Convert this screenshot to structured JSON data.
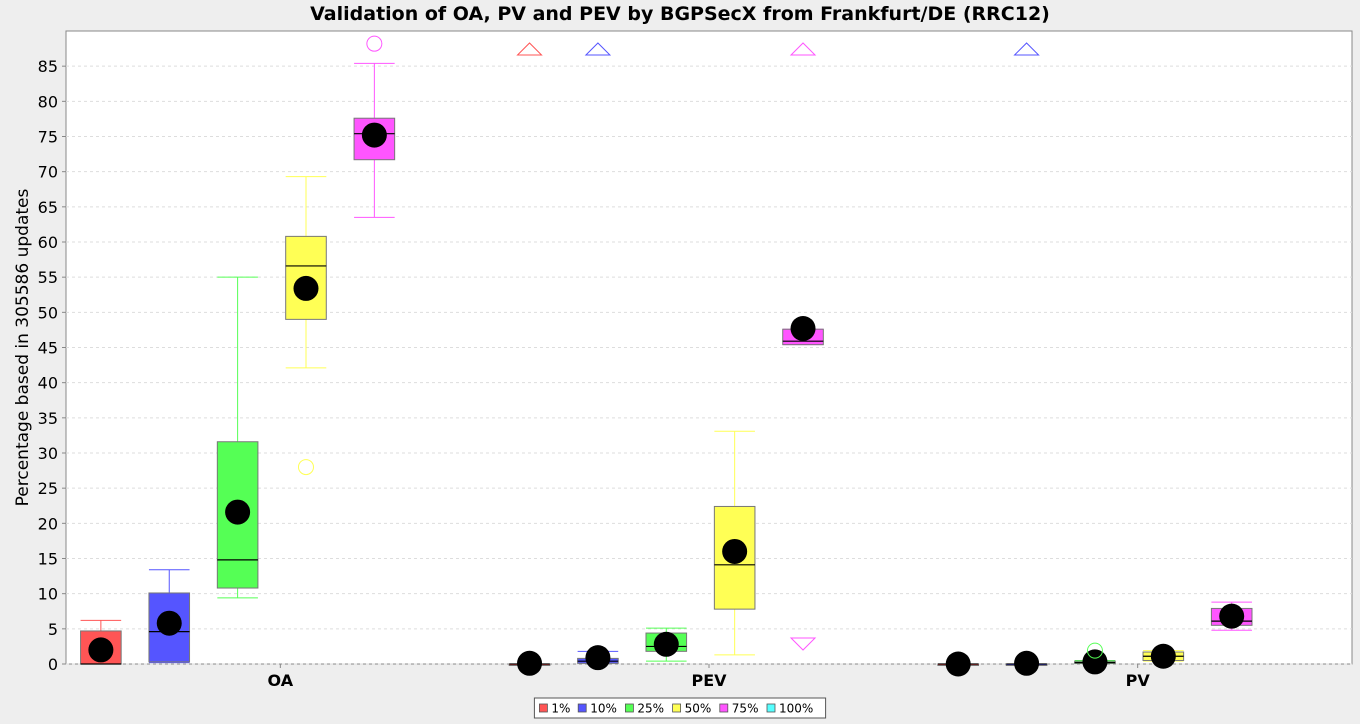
{
  "chart_data": {
    "type": "box",
    "title": "Validation of OA, PV and PEV by BGPSecX from Frankfurt/DE (RRC12)",
    "xlabel": "",
    "ylabel": "Percentage based in 305586 updates",
    "ylim": [
      0,
      90
    ],
    "yticks": [
      0,
      5,
      10,
      15,
      20,
      25,
      30,
      35,
      40,
      45,
      50,
      55,
      60,
      65,
      70,
      75,
      80,
      85
    ],
    "grid": true,
    "legend_position": "bottom",
    "categories": [
      "OA",
      "PEV",
      "PV"
    ],
    "series": [
      {
        "name": "1%",
        "color": "#ff5555",
        "boxes": [
          {
            "min": 0,
            "q1": 0,
            "median": 0,
            "q3": 4.7,
            "max": 6.2,
            "mean": 2.0,
            "outliers": [],
            "far_out_up": false,
            "far_out_down": false
          },
          {
            "min": 0,
            "q1": 0,
            "median": 0,
            "q3": 0,
            "max": 0,
            "mean": 0.1,
            "outliers": [],
            "far_out_up": true,
            "far_out_down": false
          },
          {
            "min": 0,
            "q1": 0,
            "median": 0,
            "q3": 0,
            "max": 0,
            "mean": 0,
            "outliers": [],
            "far_out_up": false,
            "far_out_down": false
          }
        ]
      },
      {
        "name": "10%",
        "color": "#5555ff",
        "boxes": [
          {
            "min": 0.2,
            "q1": 0.3,
            "median": 4.6,
            "q3": 10.1,
            "max": 13.4,
            "mean": 5.8,
            "outliers": [],
            "far_out_up": false,
            "far_out_down": false
          },
          {
            "min": 0.1,
            "q1": 0.1,
            "median": 0.4,
            "q3": 0.8,
            "max": 1.8,
            "mean": 0.9,
            "outliers": [],
            "far_out_up": true,
            "far_out_down": false
          },
          {
            "min": 0,
            "q1": 0,
            "median": 0,
            "q3": 0,
            "max": 0,
            "mean": 0.1,
            "outliers": [],
            "far_out_up": true,
            "far_out_down": false
          }
        ]
      },
      {
        "name": "25%",
        "color": "#55ff55",
        "boxes": [
          {
            "min": 9.4,
            "q1": 10.8,
            "median": 14.8,
            "q3": 31.6,
            "max": 55.0,
            "mean": 21.6,
            "outliers": [],
            "far_out_up": false,
            "far_out_down": false
          },
          {
            "min": 0.4,
            "q1": 1.8,
            "median": 2.5,
            "q3": 4.4,
            "max": 5.1,
            "mean": 2.8,
            "outliers": [],
            "far_out_up": false,
            "far_out_down": false
          },
          {
            "min": 0.1,
            "q1": 0.1,
            "median": 0.2,
            "q3": 0.4,
            "max": 0.5,
            "mean": 0.3,
            "outliers": [
              1.9
            ],
            "far_out_up": false,
            "far_out_down": false
          }
        ]
      },
      {
        "name": "50%",
        "color": "#ffff55",
        "boxes": [
          {
            "min": 42.1,
            "q1": 49.0,
            "median": 56.6,
            "q3": 60.8,
            "max": 69.3,
            "mean": 53.4,
            "outliers": [
              28.0
            ],
            "far_out_up": false,
            "far_out_down": false
          },
          {
            "min": 1.3,
            "q1": 7.8,
            "median": 14.1,
            "q3": 22.4,
            "max": 33.1,
            "mean": 16.0,
            "outliers": [],
            "far_out_up": false,
            "far_out_down": false
          },
          {
            "min": 0.4,
            "q1": 0.5,
            "median": 1.1,
            "q3": 1.7,
            "max": 1.9,
            "mean": 1.1,
            "outliers": [],
            "far_out_up": false,
            "far_out_down": false
          }
        ]
      },
      {
        "name": "75%",
        "color": "#ff55ff",
        "boxes": [
          {
            "min": 63.5,
            "q1": 71.7,
            "median": 75.4,
            "q3": 77.6,
            "max": 85.4,
            "mean": 75.2,
            "outliers": [
              88.2
            ],
            "far_out_up": false,
            "far_out_down": false
          },
          {
            "min": 45.4,
            "q1": 45.4,
            "median": 45.9,
            "q3": 47.6,
            "max": 47.6,
            "mean": 47.7,
            "outliers": [],
            "far_out_up": true,
            "far_out_down": true
          },
          {
            "min": 4.8,
            "q1": 5.5,
            "median": 6.1,
            "q3": 7.9,
            "max": 8.8,
            "mean": 6.8,
            "outliers": [],
            "far_out_up": false,
            "far_out_down": false
          }
        ]
      },
      {
        "name": "100%",
        "color": "#55ffff",
        "boxes": [
          null,
          null,
          null
        ]
      }
    ]
  }
}
